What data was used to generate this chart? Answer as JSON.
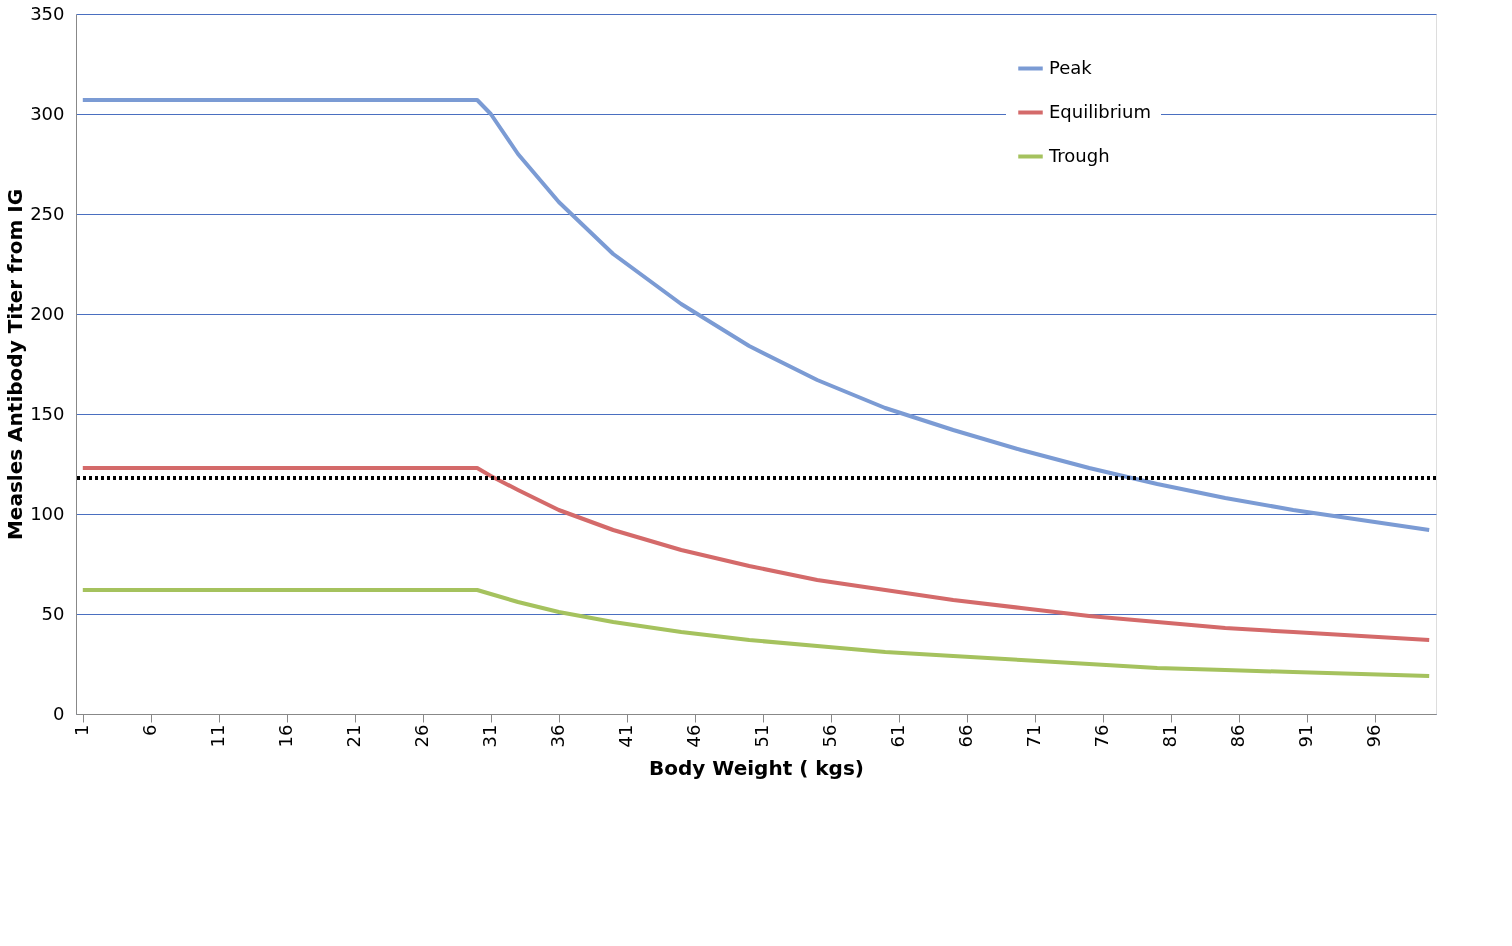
{
  "chart_data": {
    "type": "line",
    "xlabel": "Body Weight ( kgs)",
    "ylabel": "Measles Antibody Titer from IG",
    "x": [
      1,
      30,
      31,
      33,
      36,
      40,
      45,
      50,
      55,
      60,
      65,
      70,
      75,
      80,
      85,
      90,
      95,
      100
    ],
    "series": [
      {
        "name": "Peak",
        "color": "#7b9bd4",
        "values": [
          307,
          307,
          300,
          280,
          256,
          230,
          205,
          184,
          167,
          153,
          142,
          132,
          123,
          115,
          108,
          102,
          97,
          92
        ]
      },
      {
        "name": "Equilibrium",
        "color": "#d46a6a",
        "values": [
          123,
          123,
          119,
          112,
          102,
          92,
          82,
          74,
          67,
          62,
          57,
          53,
          49,
          46,
          43,
          41,
          39,
          37
        ]
      },
      {
        "name": "Trough",
        "color": "#a5c25e",
        "values": [
          62,
          62,
          60,
          56,
          51,
          46,
          41,
          37,
          34,
          31,
          29,
          27,
          25,
          23,
          22,
          21,
          20,
          19
        ]
      }
    ],
    "xlim": [
      0.5,
      100.5
    ],
    "xticks": [
      1,
      6,
      11,
      16,
      21,
      26,
      31,
      36,
      41,
      46,
      51,
      56,
      61,
      66,
      71,
      76,
      81,
      86,
      91,
      96
    ],
    "ylim": [
      0,
      350
    ],
    "yticks": [
      0,
      50,
      100,
      150,
      200,
      250,
      300,
      350
    ],
    "ref_lines": [
      {
        "axis": "y",
        "value": 118,
        "color": "#000000",
        "line_style": "dotted"
      }
    ],
    "grid": "y",
    "legend": "top right",
    "marker": "none",
    "line_style": "solid"
  }
}
